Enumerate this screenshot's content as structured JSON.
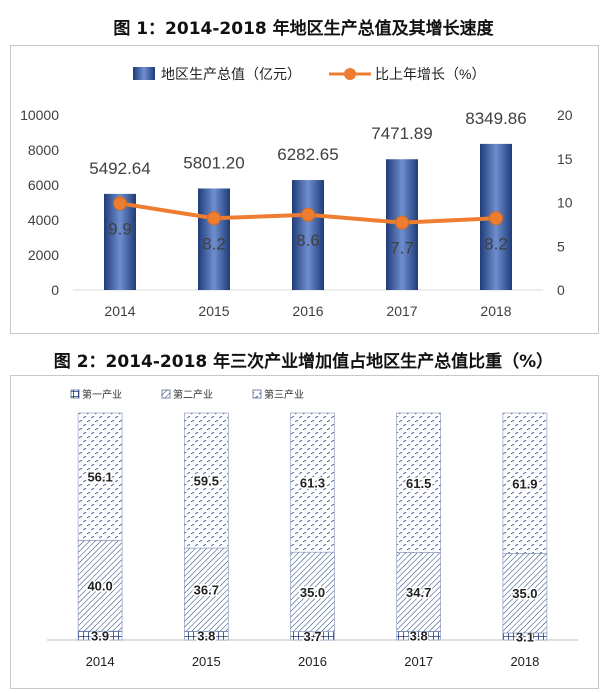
{
  "figure1": {
    "title": "图 1：2014-2018 年地区生产总值及其增长速度"
  },
  "figure2": {
    "title": "图 2：2014-2018 年三次产业增加值占地区生产总值比重（%）"
  },
  "colors": {
    "bar_dark": "#1f3b78",
    "bar_light": "#6f8fd0",
    "line": "#ed7d31",
    "hatch": "#1f3b78",
    "axis": "#d9d9d9",
    "text": "#404040"
  },
  "chart_data": [
    {
      "type": "bar",
      "combo": "bar+line",
      "title": "图 1：2014-2018 年地区生产总值及其增长速度",
      "categories": [
        "2014",
        "2015",
        "2016",
        "2017",
        "2018"
      ],
      "series": [
        {
          "name": "地区生产总值（亿元）",
          "type": "bar",
          "axis": "left",
          "values": [
            5492.64,
            5801.2,
            6282.65,
            7471.89,
            8349.86
          ],
          "labels": [
            "5492.64",
            "5801.20",
            "6282.65",
            "7471.89",
            "8349.86"
          ]
        },
        {
          "name": "比上年增长（%）",
          "type": "line",
          "axis": "right",
          "values": [
            9.9,
            8.2,
            8.6,
            7.7,
            8.2
          ],
          "labels": [
            "9.9",
            "8.2",
            "8.6",
            "7.7",
            "8.2"
          ]
        }
      ],
      "ylim_left": [
        0,
        10000
      ],
      "yticks_left": [
        "0",
        "2000",
        "4000",
        "6000",
        "8000",
        "10000"
      ],
      "ylim_right": [
        0,
        20
      ],
      "yticks_right": [
        "0",
        "5",
        "10",
        "15",
        "20"
      ],
      "legend": "top",
      "grid": false
    },
    {
      "type": "bar",
      "stacked": true,
      "title": "图 2：2014-2018 年三次产业增加值占地区生产总值比重（%）",
      "categories": [
        "2014",
        "2015",
        "2016",
        "2017",
        "2018"
      ],
      "series": [
        {
          "name": "第一产业",
          "values": [
            3.9,
            3.8,
            3.7,
            3.8,
            3.1
          ],
          "labels": [
            "3.9",
            "3.8",
            "3.7",
            "3.8",
            "3.1"
          ]
        },
        {
          "name": "第二产业",
          "values": [
            40.0,
            36.7,
            35.0,
            34.7,
            35.0
          ],
          "labels": [
            "40.0",
            "36.7",
            "35.0",
            "34.7",
            "35.0"
          ]
        },
        {
          "name": "第三产业",
          "values": [
            56.1,
            59.5,
            61.3,
            61.5,
            61.9
          ],
          "labels": [
            "56.1",
            "59.5",
            "61.3",
            "61.5",
            "61.9"
          ]
        }
      ],
      "ylim": [
        0,
        100
      ],
      "legend": "top-left",
      "grid": false
    }
  ]
}
